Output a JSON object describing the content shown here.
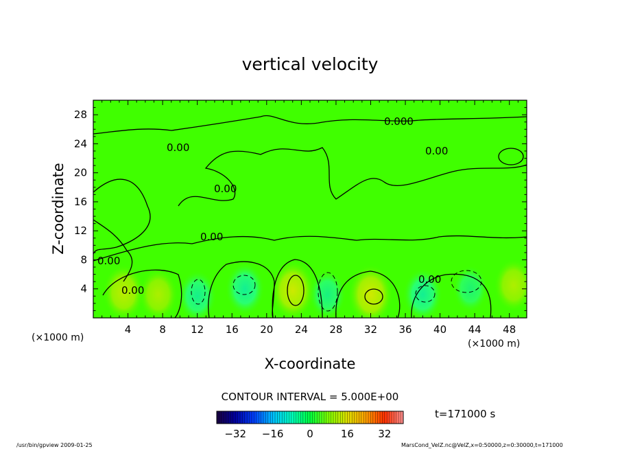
{
  "chart_data": {
    "type": "heatmap",
    "title": "vertical velocity",
    "xlabel": "X-coordinate",
    "ylabel": "Z-coordinate",
    "x_unit": "(×1000 m)",
    "x_unit_right": "(×1000 m)",
    "xlim": [
      0,
      50
    ],
    "ylim": [
      0,
      30
    ],
    "x_ticks": [
      4,
      8,
      12,
      16,
      20,
      24,
      28,
      32,
      36,
      40,
      44,
      48
    ],
    "y_ticks": [
      4,
      8,
      12,
      16,
      20,
      24,
      28
    ],
    "contour_interval_text": "CONTOUR INTERVAL = 5.000E+00",
    "contour_labels": [
      "0.00",
      "0.00",
      "0.00",
      "0.00",
      "0.00",
      "0.00",
      "0.00",
      "0.000"
    ],
    "colorbar": {
      "range": [
        -40,
        40
      ],
      "tick_values": [
        -32,
        -16,
        0,
        16,
        32
      ],
      "tick_labels": [
        "−32",
        "−16",
        "0",
        "16",
        "32"
      ],
      "colors": [
        "#1a0040",
        "#0000a0",
        "#0040ff",
        "#00c0ff",
        "#00ffc0",
        "#00ff40",
        "#80ff00",
        "#e0e000",
        "#ffa000",
        "#ff3000",
        "#ff9090"
      ]
    },
    "cells": [
      {
        "x": 3.5,
        "z": 3.5,
        "w": 20
      },
      {
        "x": 7.5,
        "z": 3.2,
        "w": 14
      },
      {
        "x": 12.0,
        "z": 3.0,
        "w": -12
      },
      {
        "x": 17.5,
        "z": 4.0,
        "w": -14
      },
      {
        "x": 23.0,
        "z": 3.8,
        "w": 26
      },
      {
        "x": 27.0,
        "z": 3.2,
        "w": -9
      },
      {
        "x": 32.0,
        "z": 3.2,
        "w": 27
      },
      {
        "x": 38.0,
        "z": 3.2,
        "w": -14
      },
      {
        "x": 43.5,
        "z": 4.0,
        "w": -5
      },
      {
        "x": 48.5,
        "z": 4.5,
        "w": 15
      }
    ],
    "background_value": 0
  },
  "time_label": "t=171000 s",
  "footer_left": "/usr/bin/gpview   2009-01-25",
  "footer_right": "MarsCond_VelZ.nc@VelZ,x=0:50000,z=0:30000,t=171000"
}
